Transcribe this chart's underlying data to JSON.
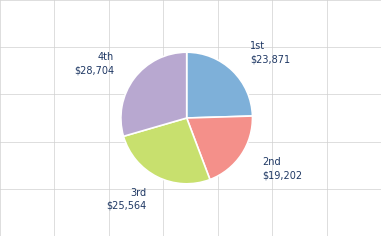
{
  "slices": [
    {
      "label": "1st",
      "value": 23871,
      "color": "#7EB0D9"
    },
    {
      "label": "2nd",
      "value": 19202,
      "color": "#F4908A"
    },
    {
      "label": "3rd",
      "value": 25564,
      "color": "#C8E06E"
    },
    {
      "label": "4th",
      "value": 28704,
      "color": "#B8A8D0"
    }
  ],
  "background_color": "#FFFFFF",
  "grid_color": "#D0D0D0",
  "label_color": "#1F3864",
  "label_fontsize": 7.0,
  "startangle": 90,
  "figsize": [
    3.81,
    2.36
  ],
  "dpi": 100,
  "n_cols": 7,
  "n_rows": 5
}
